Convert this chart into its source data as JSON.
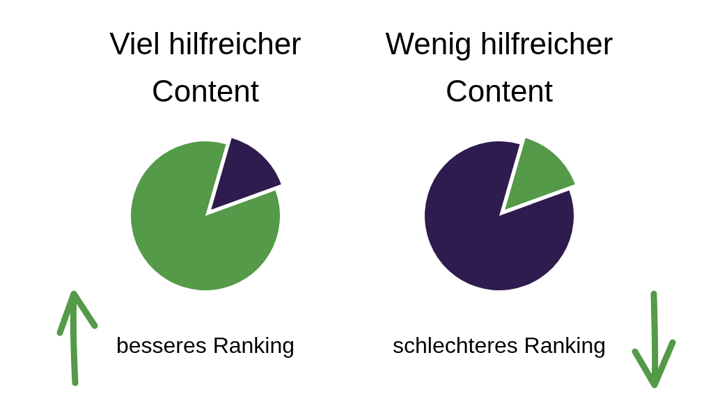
{
  "chart_data": [
    {
      "type": "pie",
      "title": "Viel hilfreicher Content",
      "categories": [
        null,
        null
      ],
      "values": [
        15,
        85
      ],
      "colors": [
        "#2e1c4e",
        "#549a48"
      ],
      "annotations": [
        "besseres Ranking"
      ]
    },
    {
      "type": "pie",
      "title": "Wenig hilfreicher Content",
      "categories": [
        null,
        null
      ],
      "values": [
        15,
        85
      ],
      "colors": [
        "#549a48",
        "#2e1c4e"
      ],
      "annotations": [
        "schlechteres Ranking"
      ]
    }
  ]
}
